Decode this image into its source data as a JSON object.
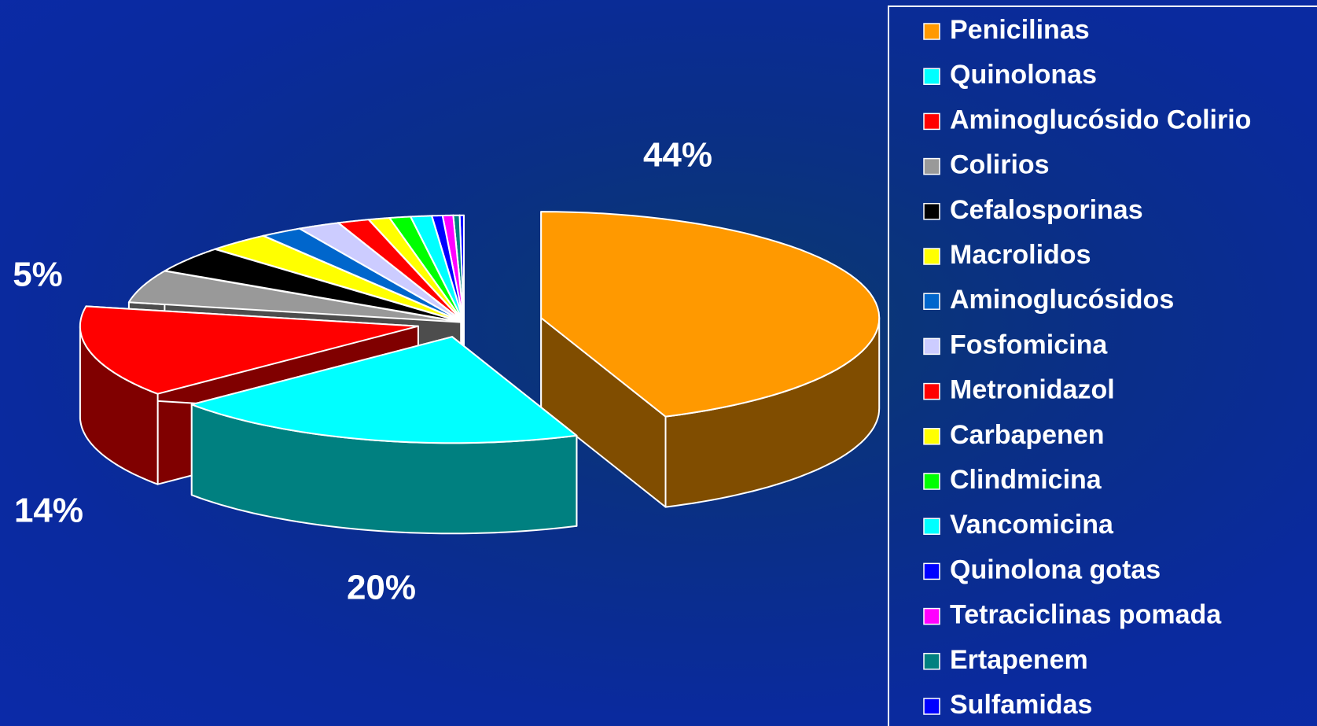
{
  "chart_data": {
    "type": "pie3d",
    "categories": [
      "Penicilinas",
      "Quinolonas",
      "Aminoglucósido Colirio",
      "Colirios",
      "Cefalosporinas",
      "Macrolidos",
      "Aminoglucósidos",
      "Fosfomicina",
      "Metronidazol",
      "Carbapenen",
      "Clindmicina",
      "Vancomicina",
      "Quinolona gotas",
      "Tetraciclinas pomada",
      "Ertapenem",
      "Sulfamidas"
    ],
    "values": [
      44,
      20,
      14,
      5,
      4,
      3,
      2,
      2,
      1.5,
      1,
      1,
      1,
      0.5,
      0.5,
      0.3,
      0.2
    ],
    "value_labels": [
      "44%",
      "20%",
      "14%",
      "5%",
      null,
      null,
      null,
      null,
      null,
      null,
      null,
      null,
      null,
      null,
      null,
      null
    ],
    "colors": [
      "#ff9900",
      "#00ffff",
      "#ff0000",
      "#999999",
      "#000000",
      "#ffff00",
      "#0066cc",
      "#ccccff",
      "#ff0000",
      "#ffff00",
      "#00ff00",
      "#00ffff",
      "#0000ff",
      "#ff00ff",
      "#008080",
      "#0000ff"
    ],
    "legend": "right"
  }
}
